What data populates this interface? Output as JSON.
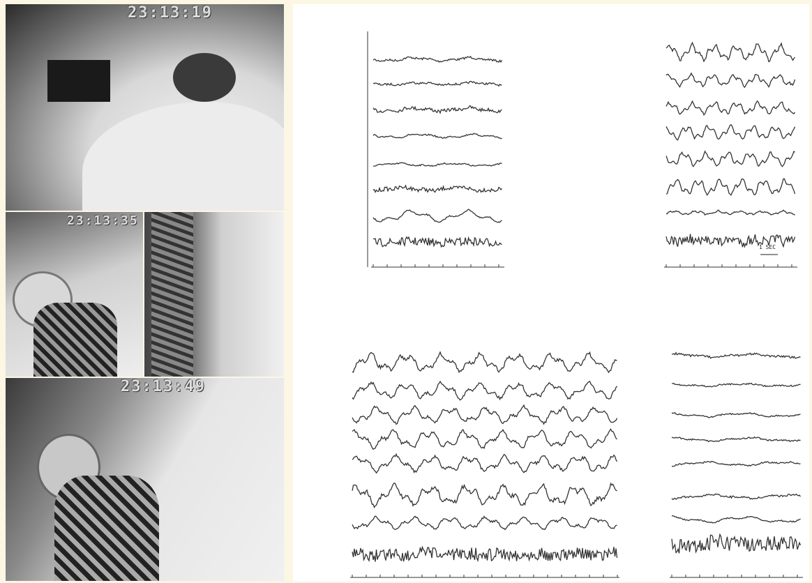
{
  "frames": [
    {
      "timestamp": "23:13:19"
    },
    {
      "timestamp": "23:13:35"
    },
    {
      "timestamp": "23:13:49"
    }
  ],
  "eeg": {
    "scale_label": "1 SEC"
  }
}
